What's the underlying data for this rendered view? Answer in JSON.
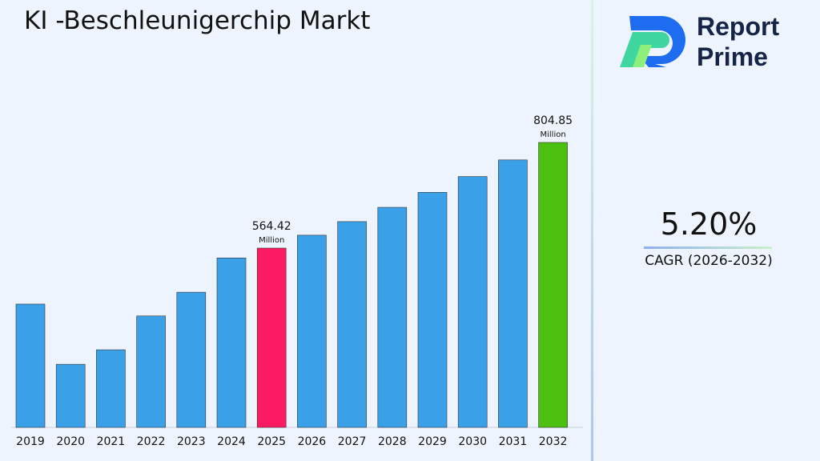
{
  "title": "KI -Beschleunigerchip Markt",
  "logo": {
    "line1": "Report",
    "line2": "Prime"
  },
  "cagr": {
    "value": "5.20%",
    "label": "CAGR (2026-2032)"
  },
  "chart_data": {
    "type": "bar",
    "title": "KI -Beschleunigerchip Markt",
    "categories": [
      "2019",
      "2020",
      "2021",
      "2022",
      "2023",
      "2024",
      "2025",
      "2026",
      "2027",
      "2028",
      "2029",
      "2030",
      "2031",
      "2032"
    ],
    "values": [
      437,
      300,
      333,
      410,
      464,
      542,
      564.42,
      593.8,
      624.7,
      657.2,
      691.3,
      727.3,
      765.1,
      804.85
    ],
    "unit": "Million",
    "data_labels": [
      {
        "index": 6,
        "value": "564.42",
        "unit": "Million"
      },
      {
        "index": 13,
        "value": "804.85",
        "unit": "Million"
      }
    ],
    "colors": {
      "default": "#3aa0e8",
      "highlight_2025": "#fc1a63",
      "highlight_2032": "#4cc00f"
    },
    "grid": false,
    "xlabel": "",
    "ylabel": ""
  }
}
